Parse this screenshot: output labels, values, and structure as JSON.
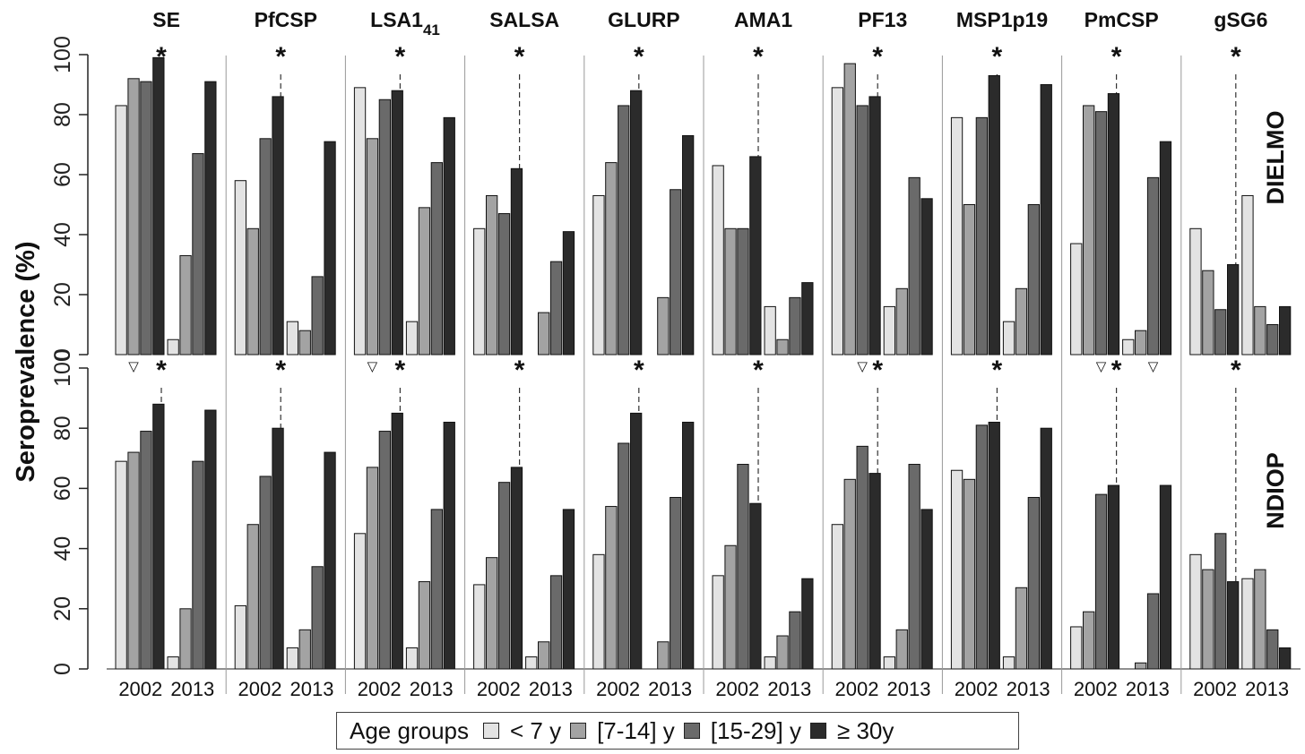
{
  "chart_data": {
    "type": "bar",
    "ylabel": "Seroprevalence  (%)",
    "y_ticks": [
      "0",
      "20",
      "40",
      "60",
      "80",
      "100"
    ],
    "ylim": [
      0,
      100
    ],
    "grid": false,
    "legend_placement": "bottom-center",
    "legend": {
      "title": "Age groups",
      "entries": [
        {
          "name": "< 7 y",
          "color": "#e3e3e3"
        },
        {
          "name": "[7-14] y",
          "color": "#a3a3a3"
        },
        {
          "name": "[15-29] y",
          "color": "#6a6a6a"
        },
        {
          "name": "≥ 30y",
          "color": "#2b2b2b"
        }
      ]
    },
    "year_labels": [
      "2002",
      "2013"
    ],
    "significance_marker": "*",
    "decrease_marker": "▽",
    "rows": [
      {
        "label": "DIELMO"
      },
      {
        "label": "NDIOP"
      }
    ],
    "panels": [
      {
        "antigen": "SE",
        "sub": "",
        "dielmo": {
          "y2002": [
            83,
            92,
            91,
            99
          ],
          "y2013": [
            5,
            33,
            67,
            91
          ],
          "star": true,
          "tri": [
            1
          ]
        },
        "ndiop": {
          "y2002": [
            69,
            72,
            79,
            88
          ],
          "y2013": [
            4,
            20,
            69,
            86
          ],
          "star": true,
          "tri": []
        }
      },
      {
        "antigen": "PfCSP",
        "sub": "",
        "dielmo": {
          "y2002": [
            58,
            42,
            72,
            86
          ],
          "y2013": [
            11,
            8,
            26,
            71
          ],
          "star": true,
          "tri": []
        },
        "ndiop": {
          "y2002": [
            21,
            48,
            64,
            80
          ],
          "y2013": [
            7,
            13,
            34,
            72
          ],
          "star": true,
          "tri": []
        }
      },
      {
        "antigen": "LSA1",
        "sub": "41",
        "dielmo": {
          "y2002": [
            89,
            72,
            85,
            88
          ],
          "y2013": [
            11,
            49,
            64,
            79
          ],
          "star": true,
          "tri": [
            1
          ]
        },
        "ndiop": {
          "y2002": [
            45,
            67,
            79,
            85
          ],
          "y2013": [
            7,
            29,
            53,
            82
          ],
          "star": true,
          "tri": []
        }
      },
      {
        "antigen": "SALSA",
        "sub": "",
        "dielmo": {
          "y2002": [
            42,
            53,
            47,
            62
          ],
          "y2013": [
            0,
            14,
            31,
            41
          ],
          "star": true,
          "tri": []
        },
        "ndiop": {
          "y2002": [
            28,
            37,
            62,
            67
          ],
          "y2013": [
            4,
            9,
            31,
            53
          ],
          "star": true,
          "tri": []
        }
      },
      {
        "antigen": "GLURP",
        "sub": "",
        "dielmo": {
          "y2002": [
            53,
            64,
            83,
            88
          ],
          "y2013": [
            0,
            19,
            55,
            73
          ],
          "star": true,
          "tri": []
        },
        "ndiop": {
          "y2002": [
            38,
            54,
            75,
            85
          ],
          "y2013": [
            0,
            9,
            57,
            82
          ],
          "star": true,
          "tri": []
        }
      },
      {
        "antigen": "AMA1",
        "sub": "",
        "dielmo": {
          "y2002": [
            63,
            42,
            42,
            66
          ],
          "y2013": [
            16,
            5,
            19,
            24
          ],
          "star": true,
          "tri": []
        },
        "ndiop": {
          "y2002": [
            31,
            41,
            68,
            55
          ],
          "y2013": [
            4,
            11,
            19,
            30
          ],
          "star": true,
          "tri": []
        }
      },
      {
        "antigen": "PF13",
        "sub": "",
        "dielmo": {
          "y2002": [
            89,
            97,
            83,
            86
          ],
          "y2013": [
            16,
            22,
            59,
            52
          ],
          "star": true,
          "tri": [
            2
          ]
        },
        "ndiop": {
          "y2002": [
            48,
            63,
            74,
            65
          ],
          "y2013": [
            4,
            13,
            68,
            53
          ],
          "star": true,
          "tri": []
        }
      },
      {
        "antigen": "MSP1p19",
        "sub": "",
        "dielmo": {
          "y2002": [
            79,
            50,
            79,
            93
          ],
          "y2013": [
            11,
            22,
            50,
            90
          ],
          "star": true,
          "tri": []
        },
        "ndiop": {
          "y2002": [
            66,
            63,
            81,
            82
          ],
          "y2013": [
            4,
            27,
            57,
            80
          ],
          "star": true,
          "tri": []
        }
      },
      {
        "antigen": "PmCSP",
        "sub": "",
        "dielmo": {
          "y2002": [
            37,
            83,
            81,
            87
          ],
          "y2013": [
            5,
            8,
            59,
            71
          ],
          "star": true,
          "tri": [
            2,
            6
          ]
        },
        "ndiop": {
          "y2002": [
            14,
            19,
            58,
            61
          ],
          "y2013": [
            0,
            2,
            25,
            61
          ],
          "star": true,
          "tri": []
        }
      },
      {
        "antigen": "gSG6",
        "sub": "",
        "dielmo": {
          "y2002": [
            42,
            28,
            15,
            30
          ],
          "y2013": [
            53,
            16,
            10,
            16
          ],
          "star": true,
          "tri": []
        },
        "ndiop": {
          "y2002": [
            38,
            33,
            45,
            29
          ],
          "y2013": [
            30,
            33,
            13,
            7
          ],
          "star": true,
          "tri": []
        }
      }
    ]
  }
}
